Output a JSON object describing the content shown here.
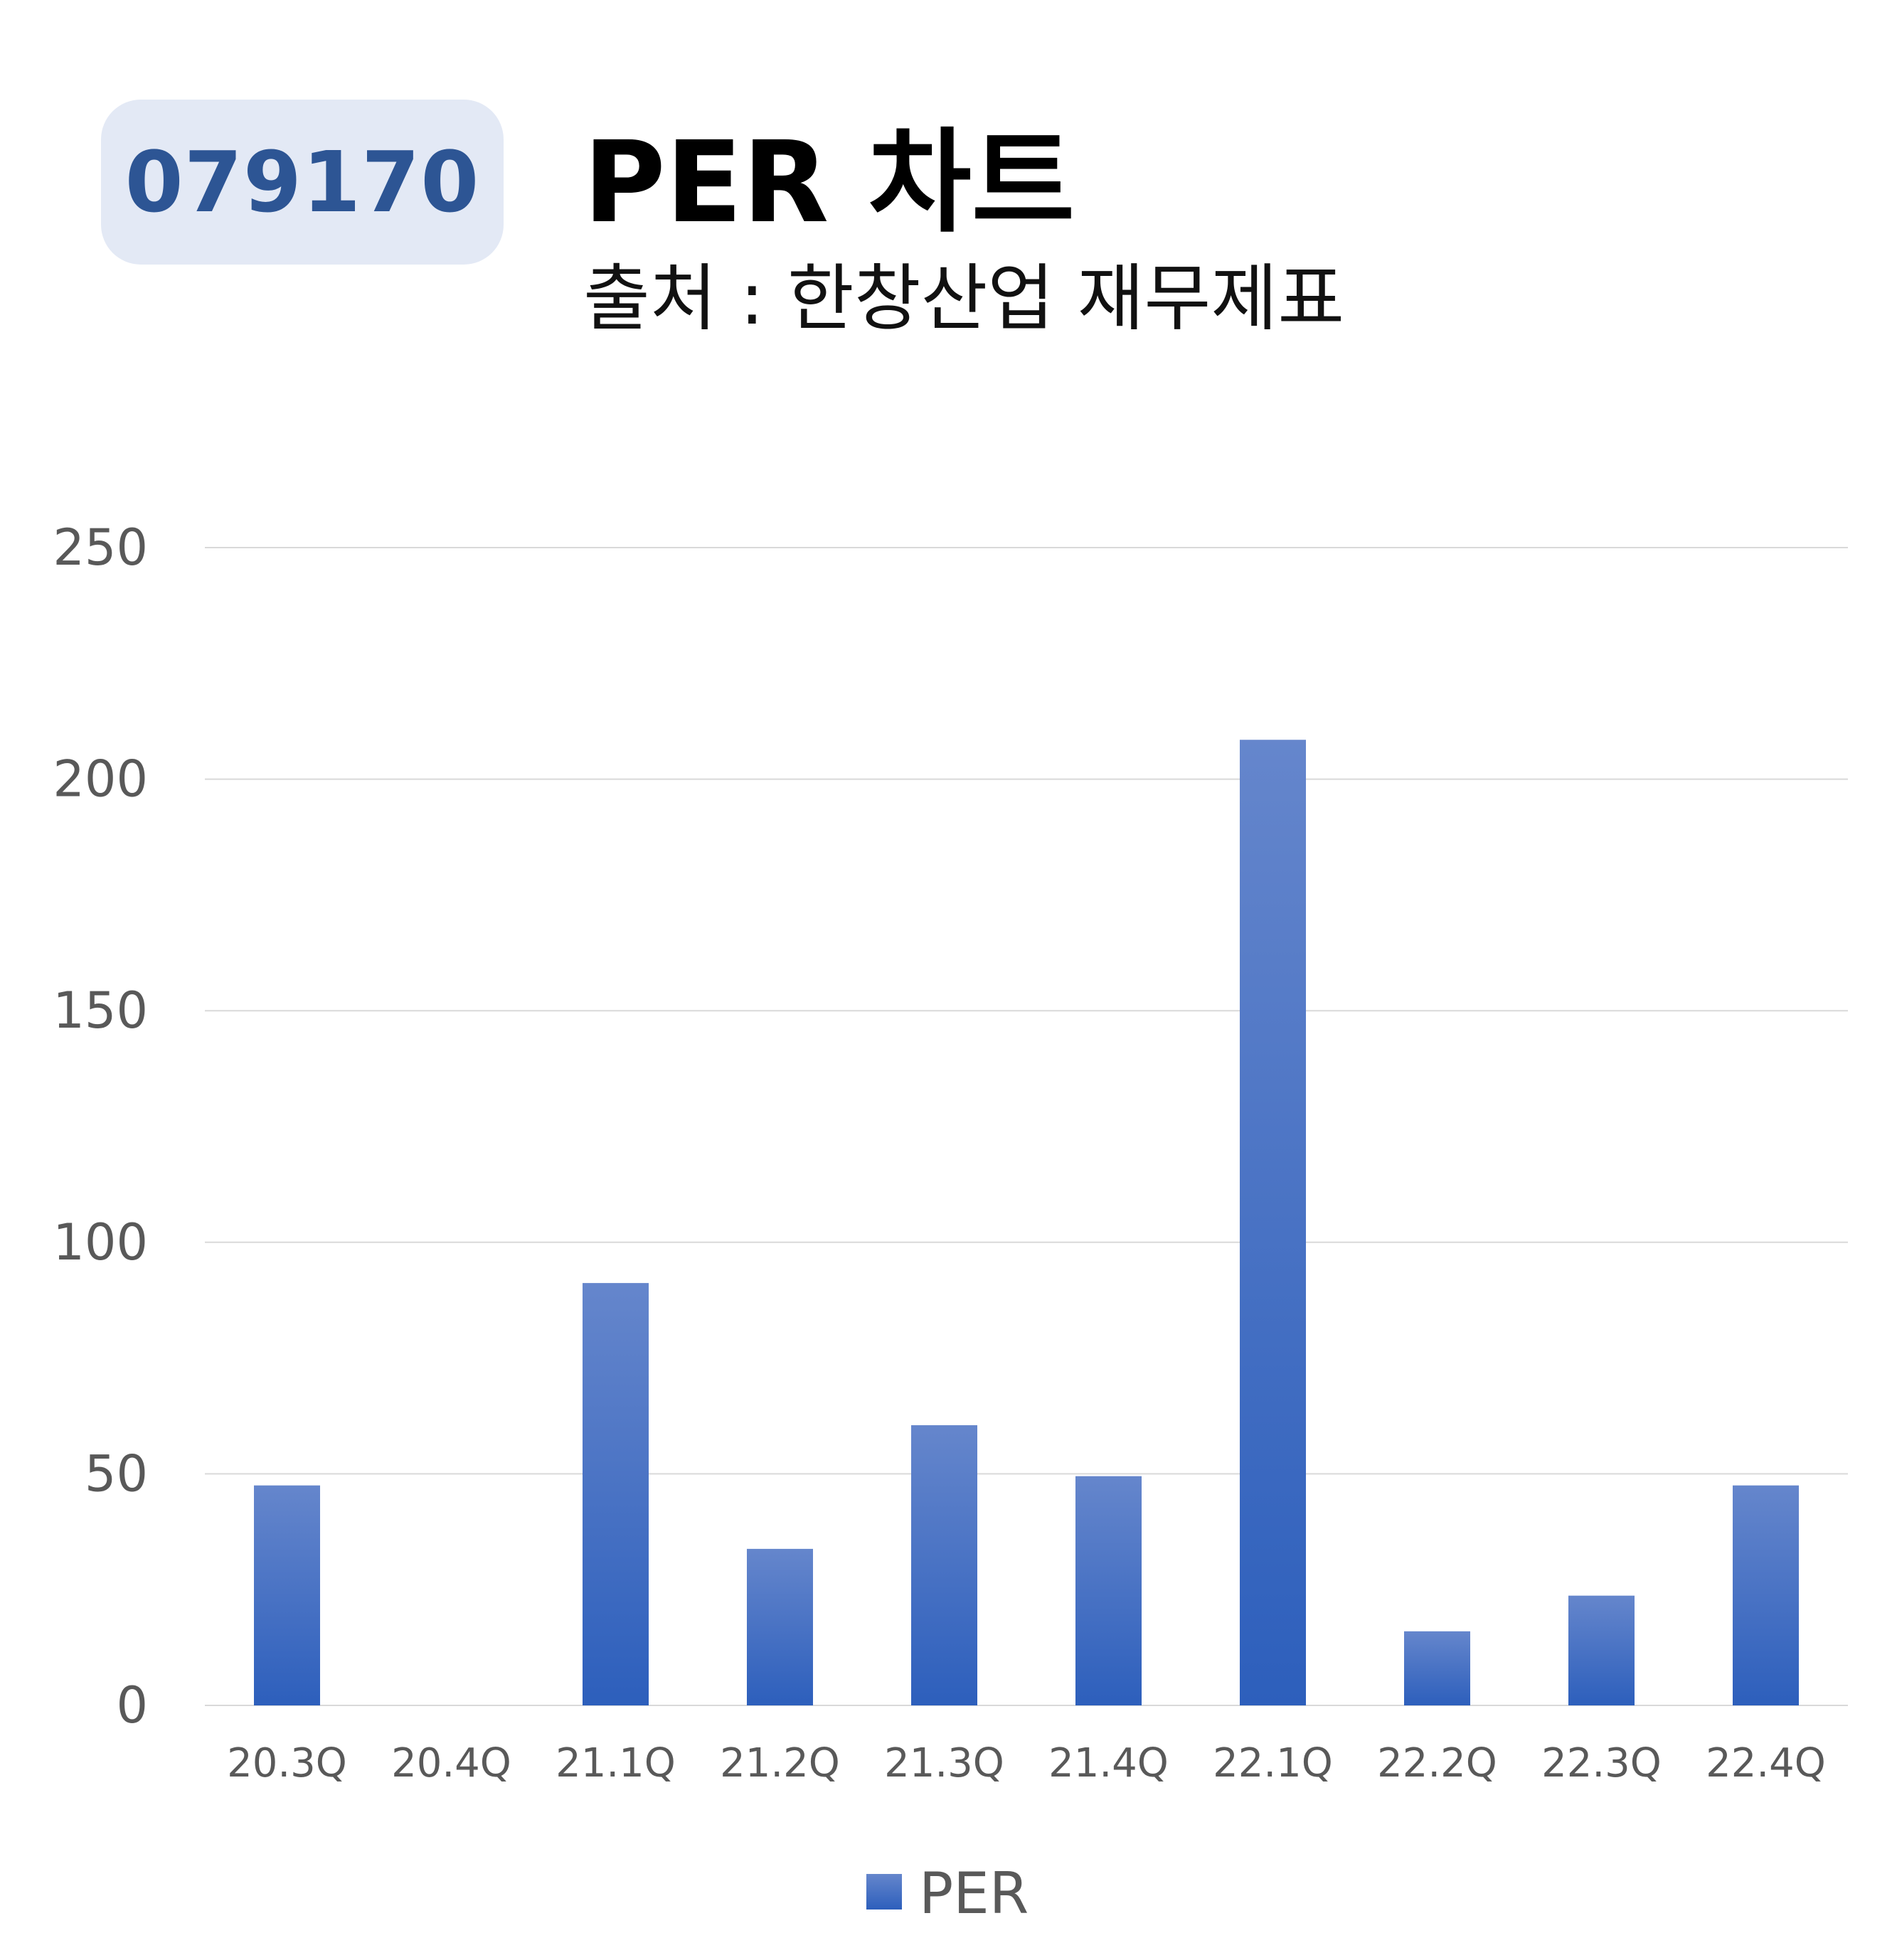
{
  "header": {
    "code": "079170",
    "title": "PER 차트",
    "subtitle": "출처 : 한창산업 재무제표"
  },
  "colors": {
    "bar_top": "#6586cc",
    "bar_bottom": "#2d5fbc",
    "gridline": "#d9d9d9",
    "axis_text": "#595959",
    "badge_bg": "#e3e9f5",
    "badge_text": "#2d5594"
  },
  "chart_data": {
    "type": "bar",
    "categories": [
      "20.3Q",
      "20.4Q",
      "21.1Q",
      "21.2Q",
      "21.3Q",
      "21.4Q",
      "22.1Q",
      "22.2Q",
      "22.3Q",
      "22.4Q"
    ],
    "series": [
      {
        "name": "PER",
        "values": [
          47.5,
          0,
          91.2,
          33.8,
          60.5,
          49.5,
          208.5,
          16,
          23.7,
          47.5
        ]
      }
    ],
    "ylim": [
      0,
      250
    ],
    "yticks": [
      0,
      50,
      100,
      150,
      200,
      250
    ],
    "grid": true,
    "legend": "bottom"
  }
}
